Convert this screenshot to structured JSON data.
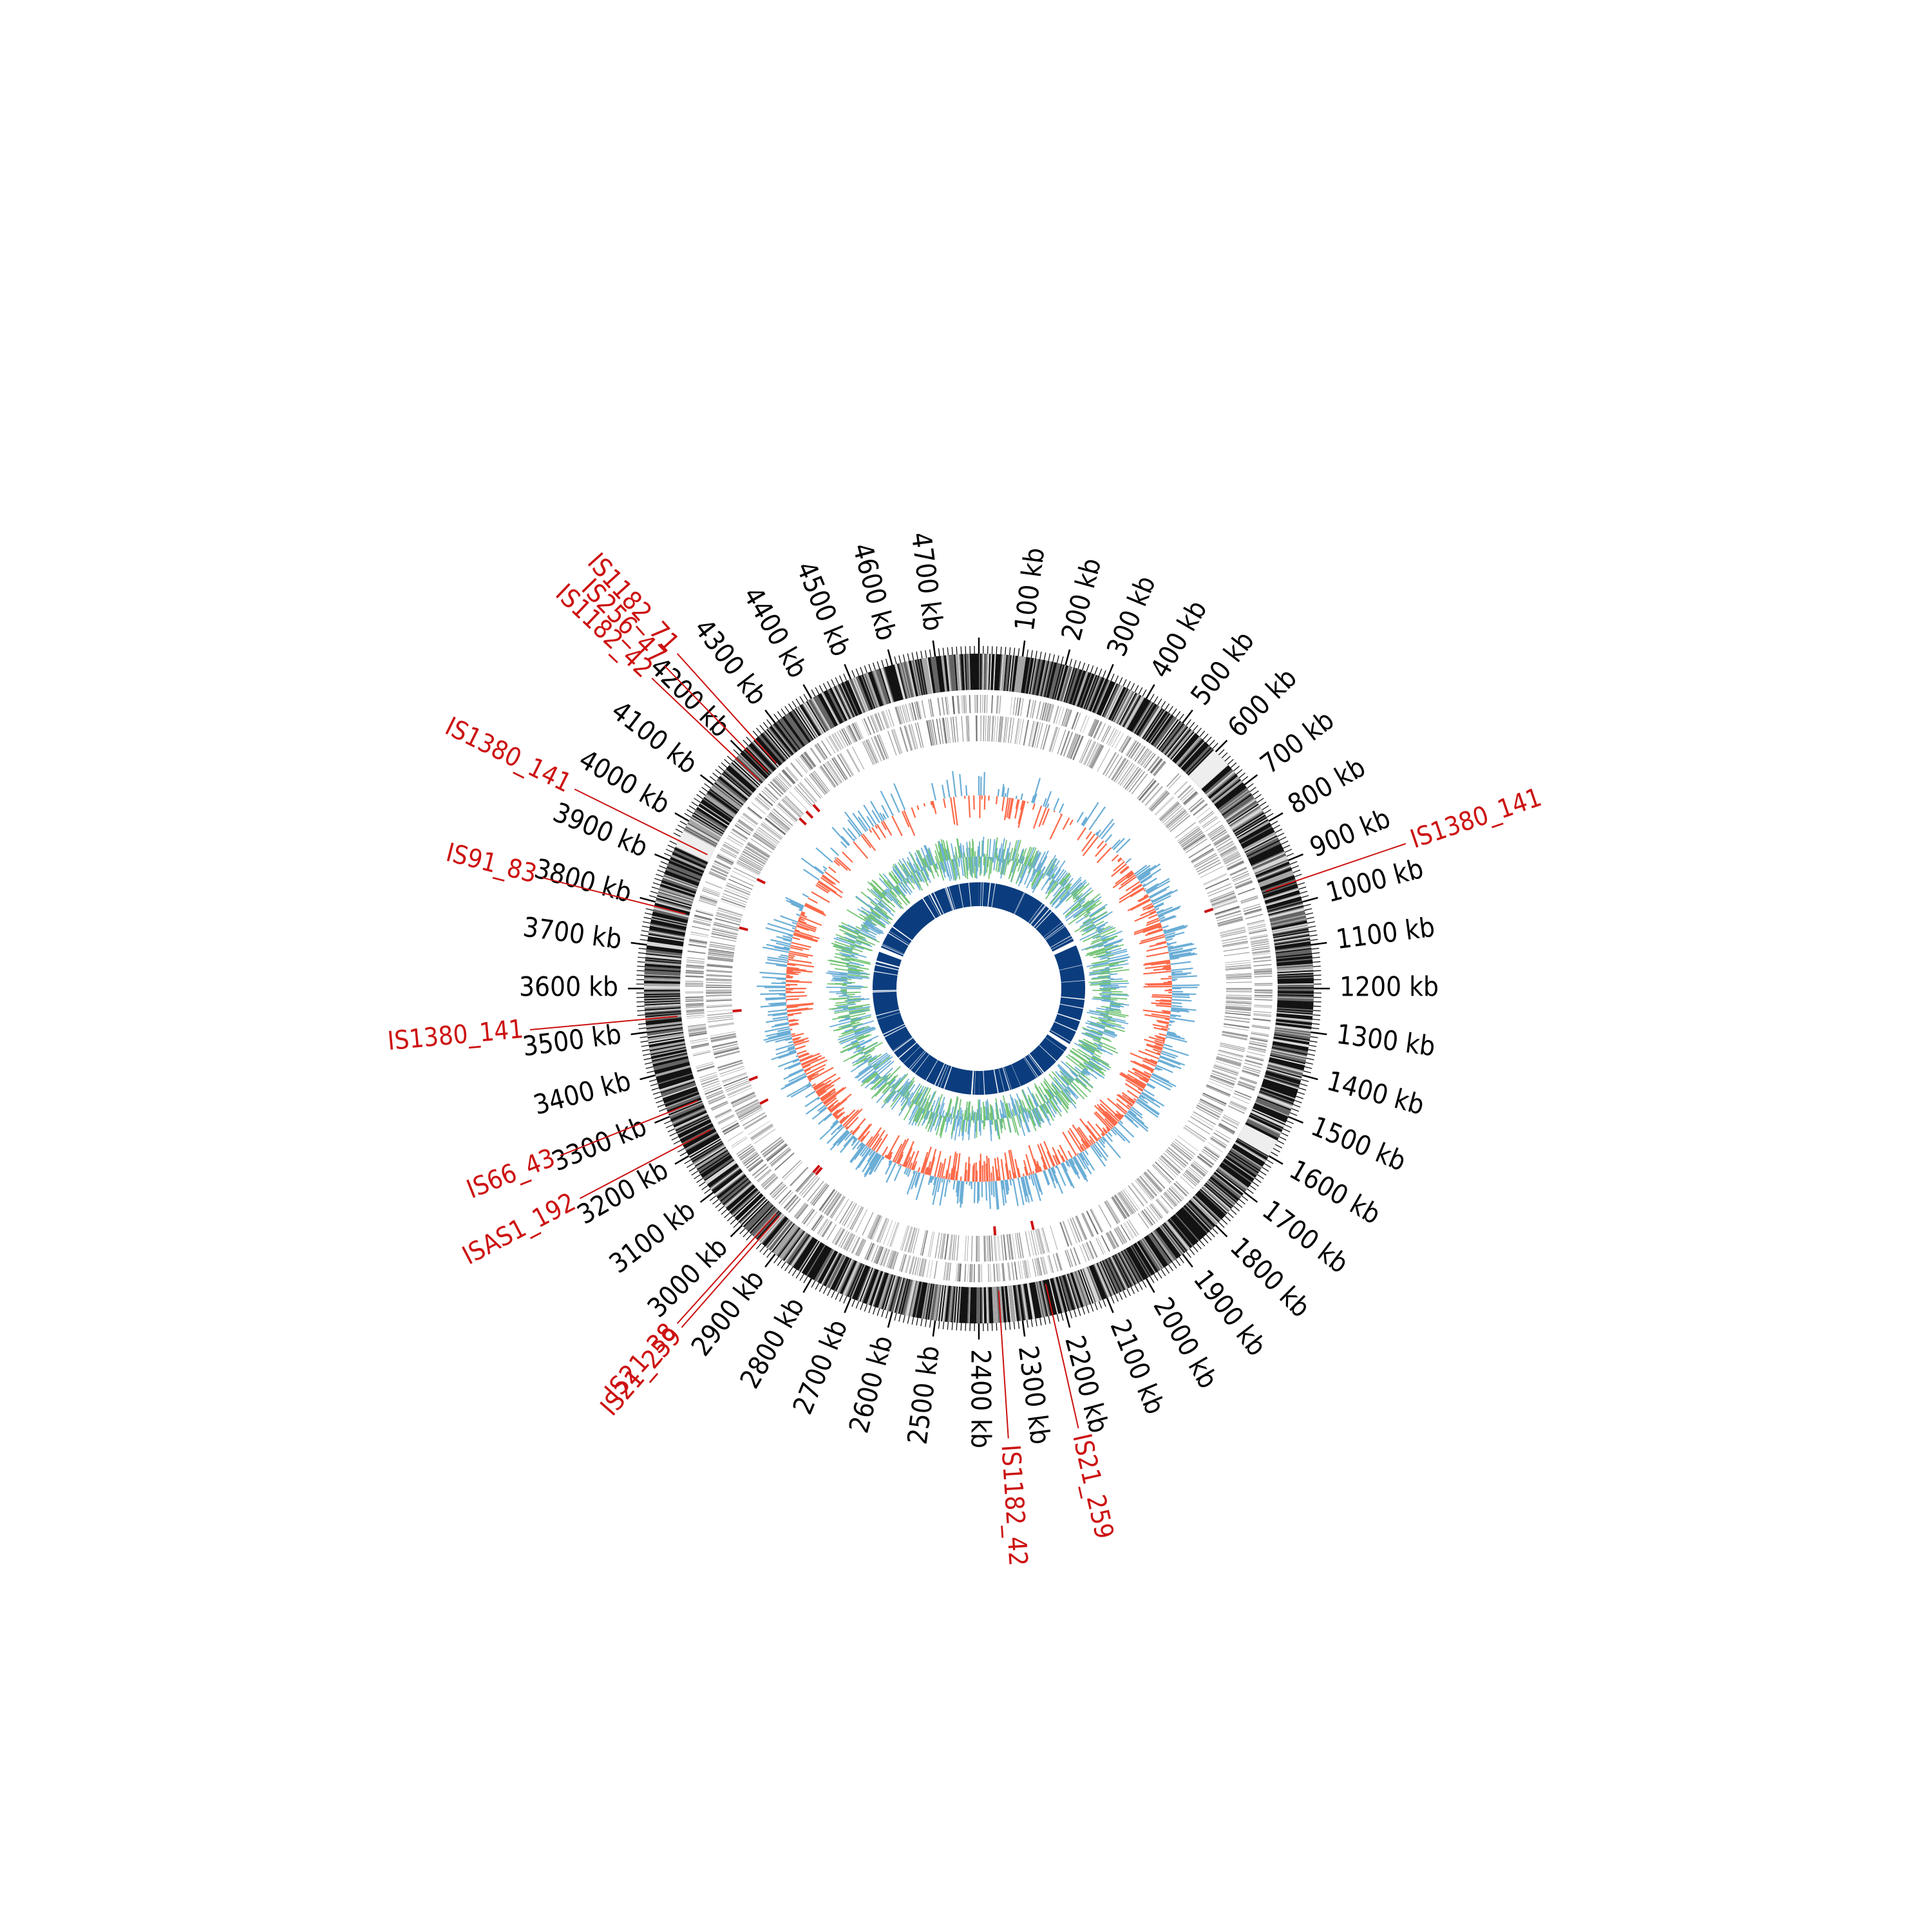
{
  "genome": {
    "length_kb": 4800,
    "tick_labels": [
      "100 kb",
      "200 kb",
      "300 kb",
      "400 kb",
      "500 kb",
      "600 kb",
      "700 kb",
      "800 kb",
      "900 kb",
      "1000 kb",
      "1100 kb",
      "1200 kb",
      "1300 kb",
      "1400 kb",
      "1500 kb",
      "1600 kb",
      "1700 kb",
      "1800 kb",
      "1900 kb",
      "2000 kb",
      "2100 kb",
      "2200 kb",
      "2300 kb",
      "2400 kb",
      "2500 kb",
      "2600 kb",
      "2700 kb",
      "2800 kb",
      "2900 kb",
      "3000 kb",
      "3100 kb",
      "3200 kb",
      "3300 kb",
      "3400 kb",
      "3500 kb",
      "3600 kb",
      "3700 kb",
      "3800 kb",
      "3900 kb",
      "4000 kb",
      "4100 kb",
      "4200 kb",
      "4300 kb",
      "4400 kb",
      "4500 kb",
      "4600 kb",
      "4700 kb"
    ]
  },
  "insertion_sequences": [
    {
      "label": "IS1380_141",
      "position_kb": 950
    },
    {
      "label": "IS1182_42",
      "position_kb": 2350
    },
    {
      "label": "IS21_259",
      "position_kb": 2230
    },
    {
      "label": "IS21_38",
      "position_kb": 2960
    },
    {
      "label": "IS21_259",
      "position_kb": 2950
    },
    {
      "label": "ISAS1_192",
      "position_kb": 3230
    },
    {
      "label": "IS66_43",
      "position_kb": 3310
    },
    {
      "label": "IS1380_141",
      "position_kb": 3530
    },
    {
      "label": "IS91_83",
      "position_kb": 3790
    },
    {
      "label": "IS1380_141",
      "position_kb": 3950
    },
    {
      "label": "IS1182_42",
      "position_kb": 4180
    },
    {
      "label": "IS256_47",
      "position_kb": 4210
    },
    {
      "label": "IS1182_71",
      "position_kb": 4240
    }
  ],
  "colors": {
    "is_label": "#cc1111",
    "gc_skew_positive": "#6baed6",
    "gc_skew_negative": "#fb6a4a",
    "gc_content": "#74c476",
    "inner_ring": "#0b3d7e",
    "gene_ring": "#9a9a9a",
    "outer_ring_dark": "#111111"
  }
}
